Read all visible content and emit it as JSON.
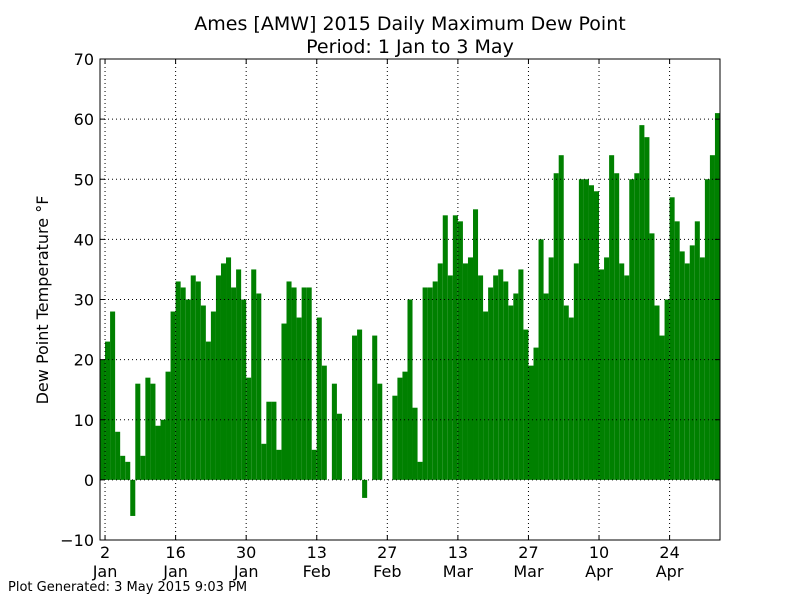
{
  "chart_data": {
    "type": "bar",
    "title": "Ames [AMW] 2015 Daily Maximum Dew Point",
    "subtitle": "Period: 1 Jan to 3 May",
    "y_label": "Dew Point Temperature °F",
    "footer": "Plot Generated: 3 May 2015 9:03 PM",
    "color": "#008000",
    "grid": true,
    "x": [
      1,
      2,
      3,
      4,
      5,
      6,
      7,
      8,
      9,
      10,
      11,
      12,
      13,
      14,
      15,
      16,
      17,
      18,
      19,
      20,
      21,
      22,
      23,
      24,
      25,
      26,
      27,
      28,
      29,
      30,
      31,
      32,
      33,
      34,
      35,
      36,
      37,
      38,
      39,
      40,
      41,
      42,
      43,
      44,
      45,
      46,
      47,
      48,
      49,
      50,
      51,
      52,
      53,
      54,
      55,
      56,
      57,
      58,
      59,
      60,
      61,
      62,
      63,
      64,
      65,
      66,
      67,
      68,
      69,
      70,
      71,
      72,
      73,
      74,
      75,
      76,
      77,
      78,
      79,
      80,
      81,
      82,
      83,
      84,
      85,
      86,
      87,
      88,
      89,
      90,
      91,
      92,
      93,
      94,
      95,
      96,
      97,
      98,
      99,
      100,
      101,
      102,
      103,
      104,
      105,
      106,
      107,
      108,
      109,
      110,
      111,
      112,
      113,
      114,
      115,
      116,
      117,
      118,
      119,
      120,
      121,
      122,
      123
    ],
    "values": [
      20,
      23,
      28,
      8,
      4,
      3,
      -6,
      16,
      4,
      17,
      16,
      9,
      10,
      18,
      28,
      33,
      32,
      30,
      34,
      33,
      29,
      23,
      28,
      34,
      36,
      37,
      32,
      35,
      30,
      17,
      35,
      31,
      6,
      13,
      13,
      5,
      26,
      33,
      32,
      27,
      32,
      32,
      5,
      27,
      19,
      0,
      16,
      11,
      0,
      0,
      24,
      25,
      -3,
      0,
      24,
      16,
      0,
      0,
      14,
      17,
      18,
      30,
      12,
      3,
      32,
      32,
      33,
      36,
      44,
      34,
      44,
      43,
      36,
      37,
      45,
      34,
      28,
      32,
      34,
      35,
      33,
      29,
      31,
      35,
      25,
      19,
      22,
      40,
      31,
      37,
      51,
      54,
      29,
      27,
      36,
      50,
      50,
      49,
      48,
      35,
      37,
      54,
      51,
      36,
      34,
      50,
      51,
      59,
      57,
      41,
      29,
      24,
      30,
      47,
      43,
      38,
      36,
      39,
      43,
      37,
      50,
      54,
      61
    ],
    "xlim": [
      1,
      124
    ],
    "xticks": [
      {
        "value": 2,
        "label": "2 Jan"
      },
      {
        "value": 16,
        "label": "16 Jan"
      },
      {
        "value": 30,
        "label": "30 Jan"
      },
      {
        "value": 44,
        "label": "13 Feb"
      },
      {
        "value": 58,
        "label": "27 Feb"
      },
      {
        "value": 72,
        "label": "13 Mar"
      },
      {
        "value": 86,
        "label": "27 Mar"
      },
      {
        "value": 100,
        "label": "10 Apr"
      },
      {
        "value": 114,
        "label": "24 Apr"
      }
    ],
    "ylim": [
      -10,
      70
    ],
    "yticks": [
      {
        "value": -10,
        "label": "−10"
      },
      0,
      10,
      20,
      30,
      40,
      50,
      60,
      70
    ]
  }
}
